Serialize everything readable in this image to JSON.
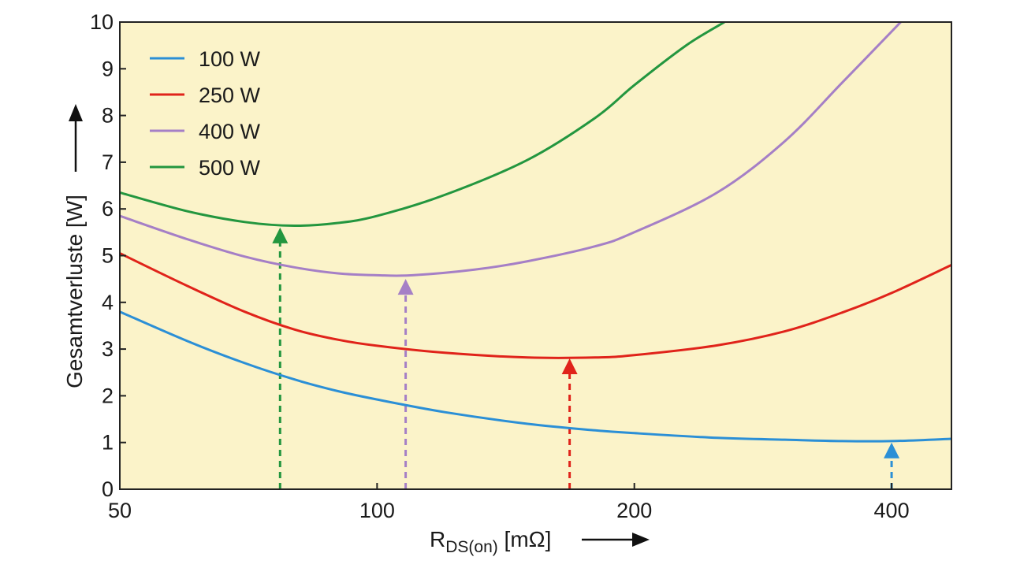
{
  "chart_data": {
    "type": "line",
    "x_scale": "log",
    "title": "",
    "xlabel_main": "R",
    "xlabel_sub": "DS(on)",
    "xlabel_unit": " [mΩ]",
    "ylabel": "Gesamtverluste [W]",
    "xlim": [
      50,
      470
    ],
    "ylim": [
      0,
      10
    ],
    "x_ticks": [
      50,
      100,
      200,
      400
    ],
    "x_tick_labels": [
      "50",
      "100",
      "200",
      "400"
    ],
    "y_ticks": [
      0,
      1,
      2,
      3,
      4,
      5,
      6,
      7,
      8,
      9,
      10
    ],
    "y_tick_labels": [
      "0",
      "1",
      "2",
      "3",
      "4",
      "5",
      "6",
      "7",
      "8",
      "9",
      "10"
    ],
    "legend_position": "top-left",
    "colors": {
      "background": "#fbf3c9",
      "axis": "#222222"
    },
    "series": [
      {
        "name": "100 W",
        "color": "#2b8fd6",
        "x": [
          50,
          60,
          70,
          80,
          90,
          100,
          120,
          150,
          180,
          200,
          250,
          300,
          350,
          400,
          470
        ],
        "y": [
          3.8,
          3.17,
          2.7,
          2.35,
          2.1,
          1.92,
          1.65,
          1.4,
          1.26,
          1.2,
          1.1,
          1.06,
          1.03,
          1.03,
          1.08
        ],
        "optimum": {
          "x": 400,
          "y": 1.0
        }
      },
      {
        "name": "250 W",
        "color": "#e0231a",
        "x": [
          50,
          60,
          70,
          80,
          90,
          100,
          120,
          150,
          180,
          200,
          250,
          300,
          350,
          400,
          470
        ],
        "y": [
          5.05,
          4.35,
          3.8,
          3.42,
          3.2,
          3.07,
          2.92,
          2.82,
          2.82,
          2.87,
          3.08,
          3.38,
          3.78,
          4.2,
          4.8
        ],
        "optimum": {
          "x": 168,
          "y": 2.8
        }
      },
      {
        "name": "400 W",
        "color": "#a57fc6",
        "x": [
          50,
          60,
          70,
          80,
          90,
          100,
          110,
          130,
          150,
          180,
          200,
          250,
          300,
          350,
          410
        ],
        "y": [
          5.85,
          5.35,
          4.98,
          4.75,
          4.62,
          4.58,
          4.58,
          4.7,
          4.88,
          5.2,
          5.5,
          6.35,
          7.45,
          8.7,
          10
        ],
        "optimum": {
          "x": 108,
          "y": 4.5
        }
      },
      {
        "name": "500 W",
        "color": "#23963f",
        "x": [
          50,
          60,
          70,
          80,
          90,
          100,
          120,
          150,
          180,
          200,
          230,
          255
        ],
        "y": [
          6.35,
          5.95,
          5.72,
          5.64,
          5.7,
          5.85,
          6.3,
          7.05,
          7.95,
          8.65,
          9.5,
          10
        ],
        "optimum": {
          "x": 77,
          "y": 5.6
        }
      }
    ]
  }
}
